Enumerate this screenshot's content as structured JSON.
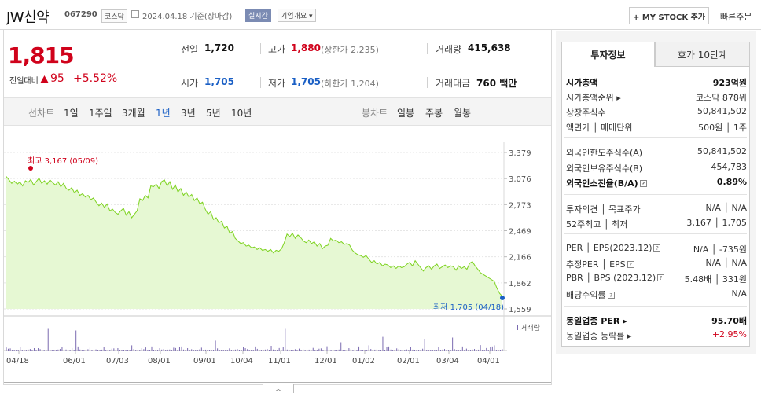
{
  "header": {
    "name": "JW신약",
    "code": "067290",
    "market": "코스닥",
    "date": "2024.04.18  기준(장마감)",
    "realtime": "실시간",
    "company_overview": "기업개요 ▾",
    "mystock": "+ MY STOCK 추가",
    "quick_order": "빠른주문"
  },
  "price": {
    "current": "1,815",
    "prev_label": "전일대비",
    "change_amount": "95",
    "change_pct": "+5.52%"
  },
  "stats": {
    "prev_close": {
      "label": "전일",
      "value": "1,720"
    },
    "high": {
      "label": "고가",
      "value": "1,880",
      "sub": "(상한가 2,235)"
    },
    "volume": {
      "label": "거래량",
      "value": "415,638"
    },
    "open": {
      "label": "시가",
      "value": "1,705"
    },
    "low": {
      "label": "저가",
      "value": "1,705",
      "sub": "(하한가 1,204)"
    },
    "amount": {
      "label": "거래대금",
      "value": "760 백만"
    }
  },
  "period_tabs": {
    "line_label": "선차트",
    "items": [
      "1일",
      "1주일",
      "3개월",
      "1년",
      "3년",
      "5년",
      "10년"
    ],
    "active_index": 3,
    "candle_label": "봉차트",
    "candle_items": [
      "일봉",
      "주봉",
      "월봉"
    ]
  },
  "chart_data": {
    "type": "area",
    "y_ticks": [
      "3,379",
      "3,076",
      "2,773",
      "2,469",
      "2,166",
      "1,862",
      "1,559"
    ],
    "ylim": [
      1559,
      3379
    ],
    "x_ticks": [
      "04/18",
      "06/01",
      "07/03",
      "08/01",
      "09/01",
      "10/04",
      "11/01",
      "12/01",
      "01/02",
      "02/01",
      "03/04",
      "04/01"
    ],
    "high_label": "최고  3,167 (05/09)",
    "low_label": "최저  1,705 (04/18)",
    "volume_label": "거래량",
    "series": [
      {
        "values": [
          3100,
          3060,
          3020,
          3045,
          3010,
          3035,
          2990,
          3050,
          3030,
          3065,
          3000,
          3040,
          3080,
          3020,
          3050,
          3010,
          3060,
          3030,
          3000,
          3040,
          2980,
          3020,
          2960,
          2940,
          2970,
          2910,
          2940,
          2880,
          2900,
          2860,
          2880,
          2830,
          2850,
          2800,
          2760,
          2790,
          2740,
          2780,
          2700,
          2720,
          2680,
          2660,
          2700,
          2730,
          2650,
          2690,
          2620,
          2660,
          2700,
          2840,
          2820,
          2880,
          2850,
          2990,
          2980,
          3010,
          2960,
          3040,
          3060,
          2990,
          3040,
          2950,
          3000,
          2920,
          2960,
          2880,
          2920,
          2860,
          2890,
          2820,
          2850,
          2780,
          2800,
          2720,
          2660,
          2690,
          2600,
          2620,
          2560,
          2580,
          2500,
          2520,
          2440,
          2460,
          2380,
          2350,
          2320,
          2330,
          2290,
          2300,
          2270,
          2280,
          2250,
          2270,
          2240,
          2250,
          2230,
          2250,
          2210,
          2240,
          2230,
          2260,
          2330,
          2430,
          2400,
          2440,
          2380,
          2420,
          2390,
          2350,
          2330,
          2360,
          2320,
          2340,
          2290,
          2320,
          2260,
          2290,
          2300,
          2380,
          2350,
          2360,
          2330,
          2340,
          2310,
          2320,
          2300,
          2240,
          2210,
          2190,
          2180,
          2160,
          2180,
          2140,
          2100,
          2120,
          2080,
          2100,
          2060,
          2080,
          2070,
          2040,
          2060,
          2030,
          2060,
          2040,
          2050,
          2080,
          2100,
          2060,
          2120,
          2080,
          2040,
          2000,
          2040,
          2060,
          2020,
          2060,
          2080,
          2030,
          2050,
          2070,
          2040,
          2060,
          2050,
          2010,
          2060,
          2030,
          2050,
          2020,
          2090,
          2110,
          2060,
          2020,
          1980,
          1960,
          1940,
          1920,
          1900,
          1880,
          1800,
          1740,
          1705
        ]
      }
    ],
    "volume_spikes": [
      0.13,
      0.42,
      0.5,
      0.08,
      0.1,
      0.18,
      0.12,
      0.15,
      0.09,
      0.14,
      0.11,
      0.22,
      0.35,
      0.12,
      0.1,
      0.16,
      0.55,
      0.32,
      0.13,
      0.11,
      0.09,
      0.95,
      0.07,
      0.08,
      0.12,
      0.1,
      0.22,
      0.36,
      0.14,
      0.2,
      0.23,
      0.17,
      0.12,
      0.58,
      0.15,
      0.85,
      0.95,
      0.22,
      0.11,
      0.1,
      0.09,
      0.3,
      0.12,
      0.08,
      0.1,
      0.25,
      0.12,
      0.16,
      0.2,
      0.14,
      0.11,
      0.18
    ]
  },
  "right_panel": {
    "tabs": [
      "투자정보",
      "호가 10단계"
    ],
    "rows": [
      {
        "k": "시가총액",
        "v": "923억원",
        "b": true
      },
      {
        "k": "시가총액순위 ▸",
        "v": "코스닥 878위"
      },
      {
        "k": "상장주식수",
        "v": "50,841,502"
      },
      {
        "k": "액면가 │ 매매단위",
        "v": "500원 │ 1주"
      },
      {
        "k": "외국인한도주식수(A)",
        "v": "50,841,502"
      },
      {
        "k": "외국인보유주식수(B)",
        "v": "454,783"
      },
      {
        "k": "외국인소진율(B/A)",
        "v": "0.89%",
        "b": true,
        "q": true
      },
      {
        "k": "투자의견 │ 목표주가",
        "v": "N/A │ N/A"
      },
      {
        "k": "52주최고 │ 최저",
        "v": "3,167 │ 1,705"
      },
      {
        "k": "PER │ EPS(2023.12)",
        "v": "N/A │ -735원",
        "q": true
      },
      {
        "k": "추정PER │ EPS",
        "v": "N/A │ N/A",
        "q": true
      },
      {
        "k": "PBR │ BPS (2023.12)",
        "v": "5.48배 │ 331원",
        "q": true
      },
      {
        "k": "배당수익률",
        "v": "N/A",
        "q": true
      },
      {
        "k": "동일업종 PER ▸",
        "v": "95.70배",
        "b": true
      },
      {
        "k": "동일업종 등락률 ▸",
        "v": "+2.95%",
        "red": true
      }
    ]
  },
  "colors": {
    "up": "#d0021b",
    "down": "#1a5fc5",
    "area_line": "#7ed321",
    "area_fill": "#e6f8d3"
  }
}
